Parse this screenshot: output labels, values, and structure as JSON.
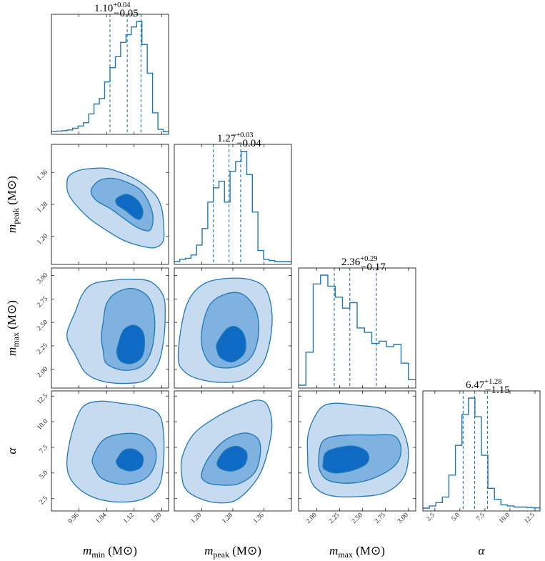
{
  "chart_data": {
    "type": "corner",
    "parameters": [
      {
        "symbol": "m",
        "sub": "min",
        "unit": "(M⊙)",
        "range": [
          0.88,
          1.22
        ],
        "ticks": [
          "0.96",
          "1.04",
          "1.12",
          "1.20"
        ],
        "median": 1.1,
        "lo": 1.05,
        "hi": 1.14,
        "title": {
          "main": "1.10",
          "plus": "+0.04",
          "minus": "−0.05"
        }
      },
      {
        "symbol": "m",
        "sub": "peak",
        "unit": "(M⊙)",
        "range": [
          1.13,
          1.43
        ],
        "ticks": [
          "1.20",
          "1.28",
          "1.36"
        ],
        "median": 1.27,
        "lo": 1.23,
        "hi": 1.3,
        "title": {
          "main": "1.27",
          "plus": "+0.03",
          "minus": "−0.04"
        }
      },
      {
        "symbol": "m",
        "sub": "max",
        "unit": "(M⊙)",
        "range": [
          1.8,
          3.08
        ],
        "ticks": [
          "2.00",
          "2.25",
          "2.50",
          "2.75",
          "3.00"
        ],
        "median": 2.36,
        "lo": 2.19,
        "hi": 2.65,
        "title": {
          "main": "2.36",
          "plus": "+0.29",
          "minus": "−0.17"
        }
      },
      {
        "symbol": "α",
        "sub": "",
        "unit": "",
        "range": [
          1.3,
          13.0
        ],
        "ticks": [
          "2.5",
          "5.0",
          "7.5",
          "10.0",
          "12.5"
        ],
        "median": 6.47,
        "lo": 5.32,
        "hi": 7.75,
        "title": {
          "main": "6.47",
          "plus": "+1.28",
          "minus": "−1.15"
        }
      }
    ],
    "histograms": [
      [
        0.002,
        0.004,
        0.008,
        0.014,
        0.03,
        0.05,
        0.08,
        0.16,
        0.25,
        0.3,
        0.45,
        0.58,
        0.68,
        0.81,
        0.88,
        0.95,
        1.0,
        0.79,
        0.53,
        0.17,
        0.02,
        0
      ],
      [
        0,
        0.02,
        0.03,
        0.06,
        0.15,
        0.3,
        0.54,
        0.67,
        0.73,
        0.54,
        0.82,
        0.91,
        1.0,
        0.79,
        0.45,
        0.1,
        0.02,
        0.01,
        0,
        0,
        0
      ],
      [
        0,
        0.3,
        0.92,
        1.0,
        0.9,
        0.8,
        0.7,
        0.75,
        0.52,
        0.48,
        0.38,
        0.4,
        0.35,
        0.37,
        0.2,
        0.05
      ],
      [
        0,
        0.02,
        0.05,
        0.1,
        0.3,
        0.57,
        0.85,
        1.0,
        0.83,
        0.48,
        0.18,
        0.08,
        0.03,
        0.02,
        0.01,
        0.01,
        0.005,
        0.002
      ]
    ],
    "contours": {
      "1-0": [
        [
          [
            0.925,
            1.325
          ],
          [
            0.93,
            1.35
          ],
          [
            0.96,
            1.365
          ],
          [
            1.0,
            1.37
          ],
          [
            1.04,
            1.37
          ],
          [
            1.08,
            1.36
          ],
          [
            1.12,
            1.345
          ],
          [
            1.155,
            1.325
          ],
          [
            1.185,
            1.3
          ],
          [
            1.2,
            1.27
          ],
          [
            1.205,
            1.235
          ],
          [
            1.205,
            1.19
          ],
          [
            1.18,
            1.172
          ],
          [
            1.14,
            1.176
          ],
          [
            1.09,
            1.19
          ],
          [
            1.04,
            1.215
          ],
          [
            0.99,
            1.245
          ],
          [
            0.95,
            1.28
          ],
          [
            0.93,
            1.305
          ]
        ],
        [
          [
            0.995,
            1.315
          ],
          [
            1.02,
            1.34
          ],
          [
            1.06,
            1.345
          ],
          [
            1.1,
            1.335
          ],
          [
            1.14,
            1.315
          ],
          [
            1.165,
            1.28
          ],
          [
            1.175,
            1.245
          ],
          [
            1.165,
            1.215
          ],
          [
            1.13,
            1.222
          ],
          [
            1.09,
            1.245
          ],
          [
            1.05,
            1.27
          ],
          [
            1.01,
            1.29
          ]
        ],
        [
          [
            1.07,
            1.295
          ],
          [
            1.1,
            1.305
          ],
          [
            1.13,
            1.29
          ],
          [
            1.145,
            1.265
          ],
          [
            1.14,
            1.245
          ],
          [
            1.125,
            1.245
          ],
          [
            1.095,
            1.265
          ],
          [
            1.07,
            1.28
          ]
        ]
      ],
      "2-0": [
        [
          [
            0.925,
            2.36
          ],
          [
            0.95,
            2.62
          ],
          [
            0.97,
            2.8
          ],
          [
            1.0,
            2.91
          ],
          [
            1.06,
            2.95
          ],
          [
            1.12,
            2.96
          ],
          [
            1.17,
            2.93
          ],
          [
            1.205,
            2.78
          ],
          [
            1.21,
            2.55
          ],
          [
            1.205,
            2.3
          ],
          [
            1.19,
            2.06
          ],
          [
            1.155,
            1.89
          ],
          [
            1.1,
            1.85
          ],
          [
            1.03,
            1.87
          ],
          [
            0.98,
            1.96
          ],
          [
            0.95,
            2.15
          ]
        ],
        [
          [
            1.03,
            2.5
          ],
          [
            1.04,
            2.7
          ],
          [
            1.07,
            2.82
          ],
          [
            1.12,
            2.86
          ],
          [
            1.165,
            2.75
          ],
          [
            1.18,
            2.5
          ],
          [
            1.17,
            2.2
          ],
          [
            1.14,
            2.03
          ],
          [
            1.09,
            1.99
          ],
          [
            1.04,
            2.06
          ],
          [
            1.03,
            2.2
          ],
          [
            1.025,
            2.35
          ]
        ],
        [
          [
            1.075,
            2.28
          ],
          [
            1.09,
            2.42
          ],
          [
            1.12,
            2.47
          ],
          [
            1.145,
            2.4
          ],
          [
            1.15,
            2.25
          ],
          [
            1.14,
            2.12
          ],
          [
            1.11,
            2.06
          ],
          [
            1.08,
            2.09
          ],
          [
            1.07,
            2.18
          ]
        ]
      ],
      "2-1": [
        [
          [
            1.14,
            2.12
          ],
          [
            1.15,
            2.5
          ],
          [
            1.17,
            2.76
          ],
          [
            1.21,
            2.92
          ],
          [
            1.27,
            2.97
          ],
          [
            1.33,
            2.95
          ],
          [
            1.365,
            2.85
          ],
          [
            1.38,
            2.6
          ],
          [
            1.375,
            2.3
          ],
          [
            1.355,
            2.05
          ],
          [
            1.31,
            1.89
          ],
          [
            1.25,
            1.86
          ],
          [
            1.19,
            1.9
          ],
          [
            1.155,
            1.98
          ]
        ],
        [
          [
            1.2,
            2.4
          ],
          [
            1.22,
            2.68
          ],
          [
            1.26,
            2.8
          ],
          [
            1.305,
            2.8
          ],
          [
            1.34,
            2.62
          ],
          [
            1.345,
            2.35
          ],
          [
            1.325,
            2.12
          ],
          [
            1.28,
            2.02
          ],
          [
            1.23,
            2.04
          ],
          [
            1.205,
            2.18
          ]
        ],
        [
          [
            1.24,
            2.28
          ],
          [
            1.265,
            2.43
          ],
          [
            1.29,
            2.45
          ],
          [
            1.31,
            2.35
          ],
          [
            1.31,
            2.18
          ],
          [
            1.28,
            2.08
          ],
          [
            1.25,
            2.12
          ],
          [
            1.24,
            2.2
          ]
        ]
      ],
      "3-0": [
        [
          [
            0.925,
            6.0
          ],
          [
            0.94,
            9.0
          ],
          [
            0.97,
            11.4
          ],
          [
            1.02,
            12.0
          ],
          [
            1.08,
            11.8
          ],
          [
            1.14,
            11.5
          ],
          [
            1.19,
            10.8
          ],
          [
            1.205,
            9.0
          ],
          [
            1.205,
            6.0
          ],
          [
            1.19,
            3.6
          ],
          [
            1.14,
            2.4
          ],
          [
            1.06,
            2.2
          ],
          [
            0.99,
            2.8
          ],
          [
            0.94,
            4.2
          ]
        ],
        [
          [
            1.0,
            6.5
          ],
          [
            1.03,
            8.2
          ],
          [
            1.08,
            8.8
          ],
          [
            1.14,
            8.7
          ],
          [
            1.18,
            7.5
          ],
          [
            1.18,
            5.8
          ],
          [
            1.15,
            4.4
          ],
          [
            1.09,
            3.9
          ],
          [
            1.03,
            4.4
          ],
          [
            1.005,
            5.5
          ]
        ],
        [
          [
            1.07,
            6.3
          ],
          [
            1.09,
            7.2
          ],
          [
            1.12,
            7.3
          ],
          [
            1.145,
            6.6
          ],
          [
            1.14,
            5.6
          ],
          [
            1.11,
            5.2
          ],
          [
            1.08,
            5.5
          ],
          [
            1.07,
            5.9
          ]
        ]
      ],
      "3-1": [
        [
          [
            1.15,
            4.5
          ],
          [
            1.15,
            6.5
          ],
          [
            1.18,
            8.8
          ],
          [
            1.24,
            10.5
          ],
          [
            1.3,
            11.6
          ],
          [
            1.345,
            12.1
          ],
          [
            1.37,
            11.5
          ],
          [
            1.38,
            9.5
          ],
          [
            1.365,
            6.5
          ],
          [
            1.34,
            4.3
          ],
          [
            1.29,
            2.4
          ],
          [
            1.24,
            2.1
          ],
          [
            1.19,
            2.6
          ],
          [
            1.16,
            3.4
          ]
        ],
        [
          [
            1.2,
            5.0
          ],
          [
            1.22,
            6.6
          ],
          [
            1.26,
            8.2
          ],
          [
            1.31,
            8.9
          ],
          [
            1.345,
            8.3
          ],
          [
            1.35,
            6.8
          ],
          [
            1.335,
            5.0
          ],
          [
            1.29,
            3.9
          ],
          [
            1.23,
            3.9
          ],
          [
            1.205,
            4.3
          ]
        ],
        [
          [
            1.24,
            6.0
          ],
          [
            1.26,
            7.2
          ],
          [
            1.29,
            7.6
          ],
          [
            1.315,
            7.0
          ],
          [
            1.31,
            5.8
          ],
          [
            1.28,
            5.2
          ],
          [
            1.25,
            5.4
          ]
        ]
      ],
      "3-2": [
        [
          [
            1.9,
            6.5
          ],
          [
            1.9,
            8.5
          ],
          [
            1.95,
            10.0
          ],
          [
            2.05,
            11.4
          ],
          [
            2.2,
            11.8
          ],
          [
            2.45,
            11.6
          ],
          [
            2.7,
            11.3
          ],
          [
            2.85,
            10.5
          ],
          [
            2.95,
            9.0
          ],
          [
            3.0,
            7.0
          ],
          [
            2.95,
            4.6
          ],
          [
            2.75,
            3.1
          ],
          [
            2.45,
            2.7
          ],
          [
            2.15,
            2.8
          ],
          [
            1.98,
            3.6
          ],
          [
            1.91,
            5.0
          ]
        ],
        [
          [
            2.02,
            6.5
          ],
          [
            2.05,
            7.9
          ],
          [
            2.15,
            8.5
          ],
          [
            2.35,
            8.7
          ],
          [
            2.6,
            8.7
          ],
          [
            2.85,
            8.6
          ],
          [
            2.92,
            7.2
          ],
          [
            2.85,
            5.7
          ],
          [
            2.62,
            4.5
          ],
          [
            2.35,
            4.0
          ],
          [
            2.12,
            4.3
          ],
          [
            2.03,
            5.3
          ]
        ],
        [
          [
            2.07,
            6.0
          ],
          [
            2.1,
            7.0
          ],
          [
            2.25,
            7.5
          ],
          [
            2.42,
            7.6
          ],
          [
            2.55,
            7.0
          ],
          [
            2.55,
            6.0
          ],
          [
            2.4,
            5.3
          ],
          [
            2.2,
            5.0
          ],
          [
            2.08,
            5.4
          ]
        ]
      ]
    }
  },
  "colors": {
    "line": "#1f77b4",
    "fill1": "#c6dbef",
    "fill2": "#7fb2e0",
    "fill3": "#0e6ac2"
  }
}
